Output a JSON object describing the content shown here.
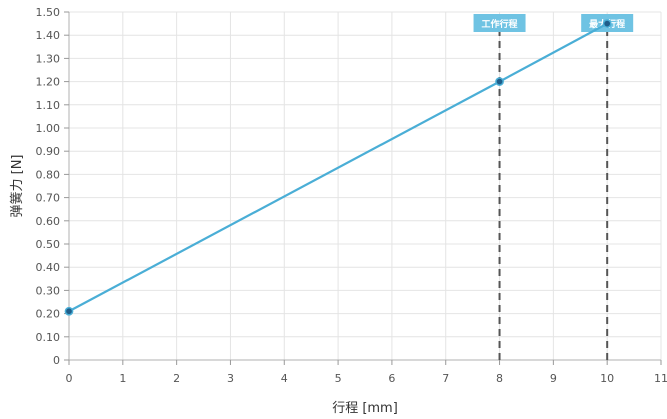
{
  "chart_data": {
    "type": "line",
    "xlabel": "行程 [mm]",
    "ylabel": "弹簧力 [N]",
    "xlim": [
      0,
      11
    ],
    "ylim": [
      0,
      1.5
    ],
    "x_ticks": [
      0,
      1,
      2,
      3,
      4,
      5,
      6,
      7,
      8,
      9,
      10,
      11
    ],
    "y_ticks": [
      "0",
      "0.10",
      "0.20",
      "0.30",
      "0.40",
      "0.50",
      "0.60",
      "0.70",
      "0.80",
      "0.90",
      "1.00",
      "1.10",
      "1.20",
      "1.30",
      "1.40",
      "1.50"
    ],
    "grid": true,
    "series": [
      {
        "x": [
          0,
          8,
          10
        ],
        "values": [
          0.21,
          1.2,
          1.45
        ],
        "color": "#4aaed6"
      }
    ],
    "markers": [
      {
        "x": 8,
        "label": "工作行程"
      },
      {
        "x": 10,
        "label": "最大行程"
      }
    ],
    "colors": {
      "line": "#4aaed6",
      "point": "#1f5e8a",
      "marker_line": "#555555",
      "marker_label_bg": "#6fc3e3",
      "grid": "#e4e4e4"
    }
  }
}
